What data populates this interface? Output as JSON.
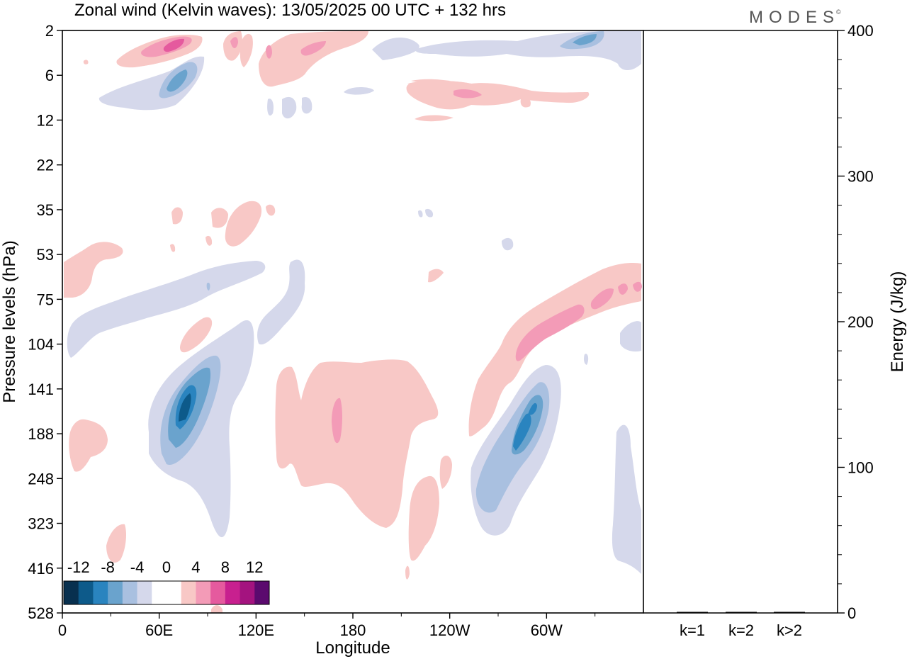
{
  "title": "Zonal wind (Kelvin waves):  13/05/2025  00 UTC  + 132 hrs",
  "brand": "MODES",
  "brand_mark": "©",
  "colors": {
    "neg12": "#08304f",
    "neg10": "#0d5a8a",
    "neg8": "#2a84bf",
    "neg6": "#6aa3cd",
    "neg4": "#a9c0e0",
    "neg2": "#d5d8eb",
    "zero": "#ffffff",
    "pos2": "#f8c8c6",
    "pos4": "#f39bb7",
    "pos6": "#e55a9e",
    "pos8": "#c8208f",
    "pos10": "#a4137f",
    "pos12": "#5b0a6e"
  },
  "chart_data": [
    {
      "type": "heatmap",
      "title": "Zonal wind (Kelvin waves):  13/05/2025  00 UTC  + 132 hrs",
      "xlabel": "Longitude",
      "ylabel": "Pressure levels (hPa)",
      "x_ticks": [
        "0",
        "60E",
        "120E",
        "180",
        "120W",
        "60W"
      ],
      "x_range_deg_east": [
        0,
        360
      ],
      "y_ticks": [
        "2",
        "6",
        "12",
        "22",
        "35",
        "53",
        "75",
        "104",
        "141",
        "188",
        "248",
        "323",
        "416",
        "528"
      ],
      "y_scale": "pressure (log-like), top = 2 hPa, bottom = 528 hPa",
      "colorbar": {
        "labels": [
          "-12",
          "-8",
          "-4",
          "0",
          "4",
          "8",
          "12"
        ],
        "levels": [
          -12,
          -10,
          -8,
          -6,
          -4,
          -2,
          2,
          4,
          6,
          8,
          10,
          12
        ],
        "placement": "bottom-left inside plot"
      },
      "features": [
        {
          "lon": 68,
          "p": 4,
          "value": 8
        },
        {
          "lon": 73,
          "p": 7,
          "value": -6
        },
        {
          "lon": 75,
          "p": 160,
          "value": -12
        },
        {
          "lon": 80,
          "p": 140,
          "value": -8
        },
        {
          "lon": 285,
          "p": 190,
          "value": -10
        },
        {
          "lon": 290,
          "p": 170,
          "value": -8
        },
        {
          "lon": 170,
          "p": 175,
          "value": 4
        },
        {
          "lon": 280,
          "p": 95,
          "value": 6
        },
        {
          "lon": 345,
          "p": 70,
          "value": 6
        },
        {
          "lon": 325,
          "p": 3,
          "value": -4
        },
        {
          "lon": 160,
          "p": 5,
          "value": 4
        },
        {
          "lon": 125,
          "p": 6,
          "value": 4
        }
      ]
    },
    {
      "type": "bar",
      "categories": [
        "k=1",
        "k=2",
        "k>2"
      ],
      "values": [
        0,
        0,
        0
      ],
      "ylabel": "Energy (J/kg)",
      "y_ticks": [
        "0",
        "100",
        "200",
        "300",
        "400"
      ],
      "ylim": [
        0,
        400
      ]
    }
  ]
}
